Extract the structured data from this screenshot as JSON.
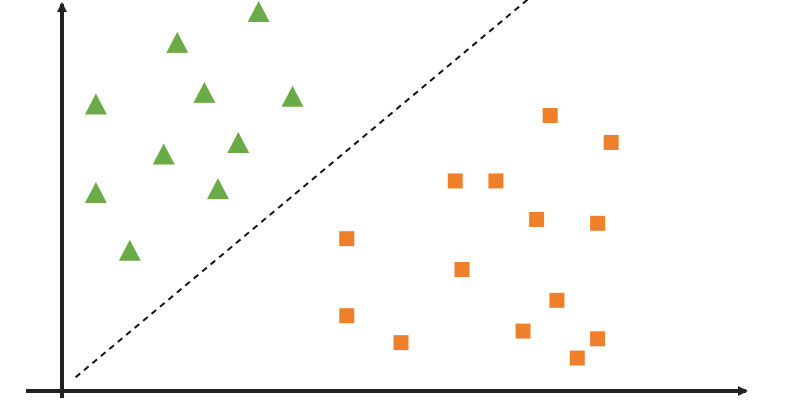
{
  "chart_data": {
    "type": "scatter",
    "title": "",
    "xlabel": "",
    "ylabel": "",
    "grid": false,
    "legend": "none",
    "xlim": [
      0,
      100
    ],
    "ylim": [
      0,
      100
    ],
    "series": [
      {
        "marker": "triangle",
        "color": "#6aab48",
        "points": [
          [
            29,
            97
          ],
          [
            17,
            89
          ],
          [
            5,
            73
          ],
          [
            21,
            76
          ],
          [
            34,
            75
          ],
          [
            15,
            60
          ],
          [
            26,
            63
          ],
          [
            5,
            50
          ],
          [
            23,
            51
          ],
          [
            10,
            35
          ]
        ]
      },
      {
        "marker": "square",
        "color": "#ef7f2b",
        "points": [
          [
            72,
            70
          ],
          [
            81,
            63
          ],
          [
            58,
            53
          ],
          [
            64,
            53
          ],
          [
            70,
            43
          ],
          [
            79,
            42
          ],
          [
            42,
            38
          ],
          [
            59,
            30
          ],
          [
            42,
            18
          ],
          [
            73,
            22
          ],
          [
            68,
            14
          ],
          [
            50,
            11
          ],
          [
            79,
            12
          ],
          [
            76,
            7
          ]
        ]
      }
    ],
    "boundary": {
      "style": "dashed",
      "color": "#111111",
      "from": [
        2,
        2
      ],
      "to": [
        72,
        105
      ]
    }
  }
}
